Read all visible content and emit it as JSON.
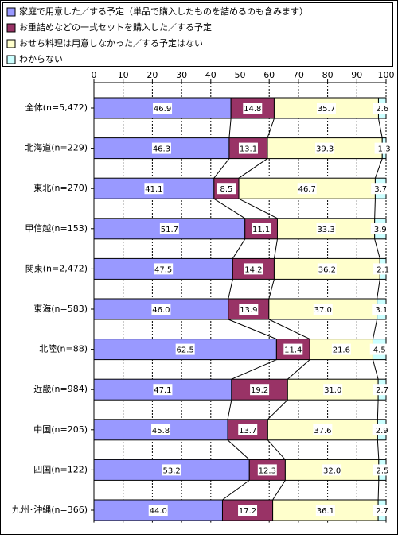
{
  "chart_data": {
    "type": "stacked-bar-horizontal",
    "categories": [
      "全体(n=5,472)",
      "北海道(n=229)",
      "東北(n=270)",
      "甲信越(n=153)",
      "関東(n=2,472)",
      "東海(n=583)",
      "北陸(n=88)",
      "近畿(n=984)",
      "中国(n=205)",
      "四国(n=122)",
      "九州･沖縄(n=366)"
    ],
    "series": [
      {
        "name": "家庭で用意した／する予定（単品で購入したものを詰めるのも含みます）",
        "color": "#9999ff",
        "values": [
          46.9,
          46.3,
          41.1,
          51.7,
          47.5,
          46.0,
          62.5,
          47.1,
          45.8,
          53.2,
          44.0
        ],
        "value_labels": [
          "46.9",
          "46.3",
          "41.1",
          "51.7",
          "47.5",
          "46.0",
          "62.5",
          "47.1",
          "45.8",
          "53.2",
          "44.0"
        ]
      },
      {
        "name": "お重詰めなどの一式セットを購入した／する予定",
        "color": "#993366",
        "values": [
          14.8,
          13.1,
          8.5,
          11.1,
          14.2,
          13.9,
          11.4,
          19.2,
          13.7,
          12.3,
          17.2
        ]
      },
      {
        "name": "おせち料理は用意しなかった／する予定はない",
        "color": "#ffffcc",
        "values": [
          35.7,
          39.3,
          46.7,
          33.3,
          36.2,
          37.0,
          21.6,
          31.0,
          37.6,
          32.0,
          36.1
        ],
        "value_labels": [
          "35.7",
          "39.3",
          "46.7",
          "33.3",
          "36.2",
          "37.0",
          "21.6",
          "31.0",
          "37.6",
          "32.0",
          "36.1"
        ]
      },
      {
        "name": "わからない",
        "color": "#ccffff",
        "values": [
          2.6,
          1.3,
          3.7,
          3.9,
          2.1,
          3.1,
          4.5,
          2.7,
          2.9,
          2.5,
          2.7
        ]
      }
    ],
    "xlim": [
      0,
      100
    ],
    "xticks": [
      0,
      10,
      20,
      30,
      40,
      50,
      60,
      70,
      80,
      90,
      100
    ],
    "grid": true
  }
}
